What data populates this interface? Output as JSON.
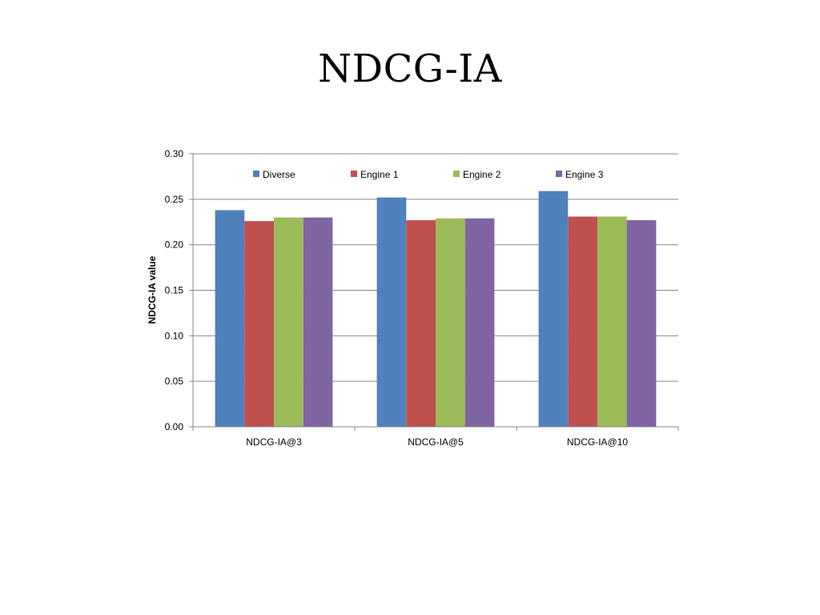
{
  "slide": {
    "title": "NDCG-IA"
  },
  "chart_data": {
    "type": "bar",
    "title": "",
    "xlabel": "",
    "ylabel": "NDCG-IA value",
    "ylim": [
      0,
      0.3
    ],
    "yticks": [
      "0.00",
      "0.05",
      "0.10",
      "0.15",
      "0.20",
      "0.25",
      "0.30"
    ],
    "grid": true,
    "legend_position": "top",
    "categories": [
      "NDCG-IA@3",
      "NDCG-IA@5",
      "NDCG-IA@10"
    ],
    "series": [
      {
        "name": "Diverse",
        "color": "#4F81BD",
        "values": [
          0.238,
          0.252,
          0.259
        ]
      },
      {
        "name": "Engine 1",
        "color": "#C0504D",
        "values": [
          0.226,
          0.227,
          0.231
        ]
      },
      {
        "name": "Engine 2",
        "color": "#9BBB59",
        "values": [
          0.23,
          0.229,
          0.231
        ]
      },
      {
        "name": "Engine 3",
        "color": "#8064A2",
        "values": [
          0.23,
          0.229,
          0.227
        ]
      }
    ]
  }
}
